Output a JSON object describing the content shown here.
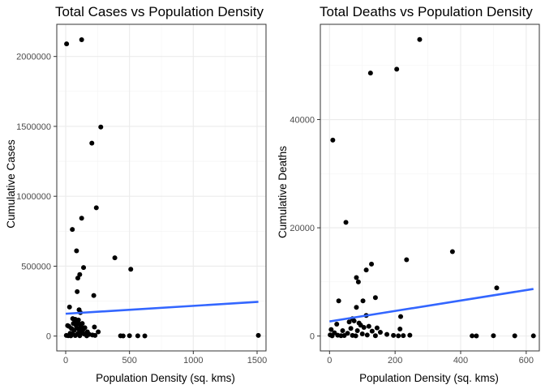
{
  "chart_data": [
    {
      "type": "scatter",
      "title": "Total Cases vs Population Density",
      "xlabel": "Population Density (sq. kms)",
      "ylabel": "Cumulative Cases",
      "xlim": [
        -70,
        1570
      ],
      "ylim": [
        -106000,
        2230000
      ],
      "x_ticks": [
        0,
        500,
        1000,
        1500
      ],
      "x_tick_labels": [
        "0",
        "500",
        "1000",
        "1500"
      ],
      "y_ticks": [
        0,
        500000,
        1000000,
        1500000,
        2000000
      ],
      "y_tick_labels": [
        "0",
        "500000",
        "1000000",
        "1500000",
        "2000000"
      ],
      "grid": true,
      "series": [
        {
          "points": [
            {
              "x": 7,
              "y": 2090000
            },
            {
              "x": 125,
              "y": 2120000
            },
            {
              "x": 275,
              "y": 1495000
            },
            {
              "x": 205,
              "y": 1380000
            },
            {
              "x": 125,
              "y": 843000
            },
            {
              "x": 240,
              "y": 918000
            },
            {
              "x": 52,
              "y": 763000
            },
            {
              "x": 85,
              "y": 610000
            },
            {
              "x": 385,
              "y": 560000
            },
            {
              "x": 140,
              "y": 490000
            },
            {
              "x": 510,
              "y": 478000
            },
            {
              "x": 110,
              "y": 440000
            },
            {
              "x": 95,
              "y": 415000
            },
            {
              "x": 90,
              "y": 318000
            },
            {
              "x": 220,
              "y": 290000
            },
            {
              "x": 30,
              "y": 208000
            },
            {
              "x": 105,
              "y": 188000
            },
            {
              "x": 115,
              "y": 168000
            },
            {
              "x": 55,
              "y": 125000
            },
            {
              "x": 75,
              "y": 120000
            },
            {
              "x": 100,
              "y": 115000
            },
            {
              "x": 15,
              "y": 75000
            },
            {
              "x": 25,
              "y": 70000
            },
            {
              "x": 60,
              "y": 90000
            },
            {
              "x": 70,
              "y": 100000
            },
            {
              "x": 80,
              "y": 80000
            },
            {
              "x": 90,
              "y": 95000
            },
            {
              "x": 110,
              "y": 85000
            },
            {
              "x": 120,
              "y": 70000
            },
            {
              "x": 130,
              "y": 90000
            },
            {
              "x": 150,
              "y": 60000
            },
            {
              "x": 45,
              "y": 55000
            },
            {
              "x": 85,
              "y": 60000
            },
            {
              "x": 100,
              "y": 50000
            },
            {
              "x": 115,
              "y": 40000
            },
            {
              "x": 65,
              "y": 40000
            },
            {
              "x": 135,
              "y": 45000
            },
            {
              "x": 170,
              "y": 30000
            },
            {
              "x": 225,
              "y": 65000
            },
            {
              "x": 255,
              "y": 30000
            },
            {
              "x": 35,
              "y": 20000
            },
            {
              "x": 55,
              "y": 15000
            },
            {
              "x": 95,
              "y": 18000
            },
            {
              "x": 125,
              "y": 22000
            },
            {
              "x": 145,
              "y": 15000
            },
            {
              "x": 185,
              "y": 12000
            },
            {
              "x": 210,
              "y": 8000
            },
            {
              "x": 5,
              "y": 5000
            },
            {
              "x": 20,
              "y": 3000
            },
            {
              "x": 40,
              "y": 2000
            },
            {
              "x": 75,
              "y": 4000
            },
            {
              "x": 110,
              "y": 3000
            },
            {
              "x": 165,
              "y": 2000
            },
            {
              "x": 230,
              "y": 5000
            },
            {
              "x": 430,
              "y": 2000
            },
            {
              "x": 450,
              "y": 1500
            },
            {
              "x": 500,
              "y": 3000
            },
            {
              "x": 565,
              "y": 2000
            },
            {
              "x": 620,
              "y": 1500
            },
            {
              "x": 1510,
              "y": 5000
            }
          ]
        }
      ],
      "trend": {
        "x": [
          0,
          1510
        ],
        "y": [
          160000,
          245000
        ]
      }
    },
    {
      "type": "scatter",
      "title": "Total Deaths vs Population Density",
      "xlabel": "Population Density (sq. kms)",
      "ylabel": "Cumulative Deaths",
      "xlim": [
        -28,
        640
      ],
      "ylim": [
        -2750,
        57600
      ],
      "x_ticks": [
        0,
        200,
        400,
        600
      ],
      "x_tick_labels": [
        "0",
        "200",
        "400",
        "600"
      ],
      "y_ticks": [
        0,
        20000,
        40000
      ],
      "y_tick_labels": [
        "0",
        "20000",
        "40000"
      ],
      "grid": true,
      "series": [
        {
          "points": [
            {
              "x": 275,
              "y": 54800
            },
            {
              "x": 205,
              "y": 49300
            },
            {
              "x": 125,
              "y": 48600
            },
            {
              "x": 10,
              "y": 36200
            },
            {
              "x": 50,
              "y": 21000
            },
            {
              "x": 375,
              "y": 15600
            },
            {
              "x": 235,
              "y": 14100
            },
            {
              "x": 128,
              "y": 13300
            },
            {
              "x": 112,
              "y": 12200
            },
            {
              "x": 82,
              "y": 10800
            },
            {
              "x": 88,
              "y": 10000
            },
            {
              "x": 510,
              "y": 8900
            },
            {
              "x": 140,
              "y": 7100
            },
            {
              "x": 28,
              "y": 6500
            },
            {
              "x": 102,
              "y": 6500
            },
            {
              "x": 82,
              "y": 5300
            },
            {
              "x": 217,
              "y": 3600
            },
            {
              "x": 112,
              "y": 3800
            },
            {
              "x": 70,
              "y": 3200
            },
            {
              "x": 75,
              "y": 2800
            },
            {
              "x": 60,
              "y": 2600
            },
            {
              "x": 90,
              "y": 2400
            },
            {
              "x": 22,
              "y": 2200
            },
            {
              "x": 95,
              "y": 2000
            },
            {
              "x": 120,
              "y": 1800
            },
            {
              "x": 105,
              "y": 1600
            },
            {
              "x": 145,
              "y": 1500
            },
            {
              "x": 65,
              "y": 1400
            },
            {
              "x": 215,
              "y": 1300
            },
            {
              "x": 5,
              "y": 1200
            },
            {
              "x": 40,
              "y": 1000
            },
            {
              "x": 85,
              "y": 1000
            },
            {
              "x": 130,
              "y": 900
            },
            {
              "x": 155,
              "y": 700
            },
            {
              "x": 15,
              "y": 600
            },
            {
              "x": 55,
              "y": 500
            },
            {
              "x": 100,
              "y": 400
            },
            {
              "x": 175,
              "y": 300
            },
            {
              "x": 2,
              "y": 200
            },
            {
              "x": 25,
              "y": 150
            },
            {
              "x": 45,
              "y": 100
            },
            {
              "x": 70,
              "y": 120
            },
            {
              "x": 115,
              "y": 180
            },
            {
              "x": 140,
              "y": 60
            },
            {
              "x": 195,
              "y": 120
            },
            {
              "x": 225,
              "y": 80
            },
            {
              "x": 245,
              "y": 150
            },
            {
              "x": 8,
              "y": 40
            },
            {
              "x": 35,
              "y": 50
            },
            {
              "x": 80,
              "y": 30
            },
            {
              "x": 210,
              "y": 40
            },
            {
              "x": 435,
              "y": 30
            },
            {
              "x": 448,
              "y": 20
            },
            {
              "x": 500,
              "y": 60
            },
            {
              "x": 565,
              "y": 40
            },
            {
              "x": 622,
              "y": 30
            }
          ]
        }
      ],
      "trend": {
        "x": [
          0,
          622
        ],
        "y": [
          2700,
          8700
        ]
      }
    }
  ]
}
